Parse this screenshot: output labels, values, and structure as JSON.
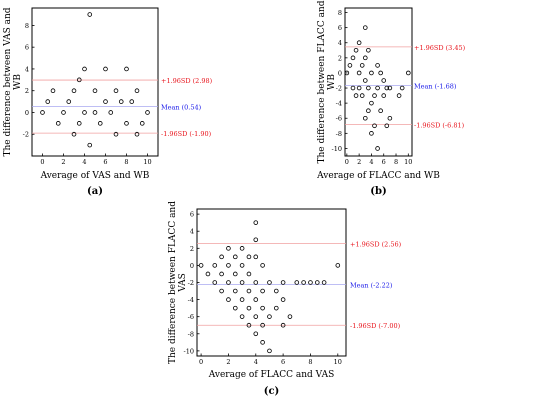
{
  "figure": {
    "colors": {
      "axis": "#000000",
      "point": "#000000",
      "limit_line": "#f0a0a0",
      "limit_text": "#e8141c",
      "mean_line": "#a8a8f0",
      "mean_text": "#1414e8"
    }
  },
  "chart_data": [
    {
      "type": "scatter",
      "panel_label": "(a)",
      "xlabel": "Average of VAS and WB",
      "ylabel": "The difference between VAS and WB",
      "xlim": [
        -1,
        11
      ],
      "ylim": [
        -4,
        9.6
      ],
      "xticks": [
        0,
        2,
        4,
        6,
        8,
        10
      ],
      "yticks": [
        -2,
        0,
        2,
        4,
        6,
        8
      ],
      "grid": false,
      "reference_lines": [
        {
          "label": "+1.96SD (2.98)",
          "value": 2.98,
          "kind": "limit"
        },
        {
          "label": "Mean (0.54)",
          "value": 0.54,
          "kind": "mean"
        },
        {
          "label": "-1.96SD (-1.90)",
          "value": -1.9,
          "kind": "limit"
        }
      ],
      "points": [
        [
          0,
          0
        ],
        [
          0.5,
          1
        ],
        [
          1,
          2
        ],
        [
          1.5,
          -1
        ],
        [
          2,
          0
        ],
        [
          2.5,
          1
        ],
        [
          3,
          2
        ],
        [
          3,
          -2
        ],
        [
          3.5,
          -1
        ],
        [
          3.5,
          3
        ],
        [
          4,
          4
        ],
        [
          4,
          0
        ],
        [
          4.5,
          9
        ],
        [
          4.5,
          -3
        ],
        [
          5,
          2
        ],
        [
          5,
          0
        ],
        [
          5.5,
          -1
        ],
        [
          6,
          4
        ],
        [
          6,
          1
        ],
        [
          6.5,
          0
        ],
        [
          7,
          2
        ],
        [
          7,
          -2
        ],
        [
          7.5,
          1
        ],
        [
          8,
          4
        ],
        [
          8,
          -1
        ],
        [
          8.5,
          1
        ],
        [
          9,
          2
        ],
        [
          9,
          -2
        ],
        [
          9.5,
          -1
        ],
        [
          10,
          0
        ]
      ]
    },
    {
      "type": "scatter",
      "panel_label": "(b)",
      "xlabel": "Average of FLACC and WB",
      "ylabel": "The difference between FLACC and WB",
      "xlim": [
        -0.3,
        10.6
      ],
      "ylim": [
        -11,
        8.6
      ],
      "xticks": [
        0,
        2,
        4,
        6,
        8,
        10
      ],
      "yticks": [
        -10,
        -8,
        -6,
        -4,
        -2,
        0,
        2,
        4,
        6,
        8
      ],
      "grid": false,
      "reference_lines": [
        {
          "label": "+1.96SD (3.45)",
          "value": 3.45,
          "kind": "limit"
        },
        {
          "label": "Mean (-1.68)",
          "value": -1.68,
          "kind": "mean"
        },
        {
          "label": "-1.96SD (-6.81)",
          "value": -6.81,
          "kind": "limit"
        }
      ],
      "points": [
        [
          0,
          0
        ],
        [
          0.5,
          1
        ],
        [
          1,
          2
        ],
        [
          1,
          -2
        ],
        [
          1.5,
          3
        ],
        [
          1.5,
          -3
        ],
        [
          2,
          4
        ],
        [
          2,
          0
        ],
        [
          2,
          -2
        ],
        [
          2.5,
          1
        ],
        [
          2.5,
          -3
        ],
        [
          3,
          6
        ],
        [
          3,
          2
        ],
        [
          3,
          -1
        ],
        [
          3,
          -6
        ],
        [
          3.5,
          3
        ],
        [
          3.5,
          -2
        ],
        [
          3.5,
          -5
        ],
        [
          4,
          0
        ],
        [
          4,
          -4
        ],
        [
          4,
          -8
        ],
        [
          4.5,
          -3
        ],
        [
          4.5,
          -7
        ],
        [
          5,
          1
        ],
        [
          5,
          -2
        ],
        [
          5,
          -10
        ],
        [
          5.5,
          0
        ],
        [
          5.5,
          -5
        ],
        [
          6,
          -1
        ],
        [
          6,
          -3
        ],
        [
          6.5,
          -2
        ],
        [
          6.5,
          -7
        ],
        [
          7,
          -2
        ],
        [
          7,
          -6
        ],
        [
          8.5,
          -3
        ],
        [
          9,
          -2
        ],
        [
          10,
          0
        ]
      ]
    },
    {
      "type": "scatter",
      "panel_label": "(c)",
      "xlabel": "Average of FLACC and VAS",
      "ylabel": "The difference between FLACC and VAS",
      "xlim": [
        -0.3,
        10.6
      ],
      "ylim": [
        -10.6,
        6.6
      ],
      "xticks": [
        0,
        2,
        4,
        6,
        8,
        10
      ],
      "yticks": [
        -10,
        -8,
        -6,
        -4,
        -2,
        0,
        2,
        4,
        6
      ],
      "grid": false,
      "reference_lines": [
        {
          "label": "+1.96SD (2.56)",
          "value": 2.56,
          "kind": "limit"
        },
        {
          "label": "Mean (-2.22)",
          "value": -2.22,
          "kind": "mean"
        },
        {
          "label": "-1.96SD (-7.00)",
          "value": -7.0,
          "kind": "limit"
        }
      ],
      "points": [
        [
          0,
          0
        ],
        [
          0.5,
          -1
        ],
        [
          1,
          0
        ],
        [
          1,
          -2
        ],
        [
          1.5,
          1
        ],
        [
          1.5,
          -1
        ],
        [
          1.5,
          -3
        ],
        [
          2,
          2
        ],
        [
          2,
          0
        ],
        [
          2,
          -2
        ],
        [
          2,
          -4
        ],
        [
          2.5,
          1
        ],
        [
          2.5,
          -1
        ],
        [
          2.5,
          -3
        ],
        [
          2.5,
          -5
        ],
        [
          3,
          2
        ],
        [
          3,
          0
        ],
        [
          3,
          -2
        ],
        [
          3,
          -4
        ],
        [
          3,
          -6
        ],
        [
          3.5,
          1
        ],
        [
          3.5,
          -1
        ],
        [
          3.5,
          -3
        ],
        [
          3.5,
          -5
        ],
        [
          3.5,
          -7
        ],
        [
          4,
          5
        ],
        [
          4,
          3
        ],
        [
          4,
          1
        ],
        [
          4,
          -2
        ],
        [
          4,
          -4
        ],
        [
          4,
          -6
        ],
        [
          4,
          -8
        ],
        [
          4.5,
          0
        ],
        [
          4.5,
          -3
        ],
        [
          4.5,
          -5
        ],
        [
          4.5,
          -7
        ],
        [
          4.5,
          -9
        ],
        [
          5,
          -10
        ],
        [
          5,
          -6
        ],
        [
          5,
          -2
        ],
        [
          5.5,
          -3
        ],
        [
          5.5,
          -5
        ],
        [
          6,
          -2
        ],
        [
          6,
          -4
        ],
        [
          6,
          -7
        ],
        [
          6.5,
          -6
        ],
        [
          7,
          -2
        ],
        [
          7.5,
          -2
        ],
        [
          8,
          -2
        ],
        [
          8.5,
          -2
        ],
        [
          9,
          -2
        ],
        [
          10,
          0
        ]
      ]
    }
  ]
}
